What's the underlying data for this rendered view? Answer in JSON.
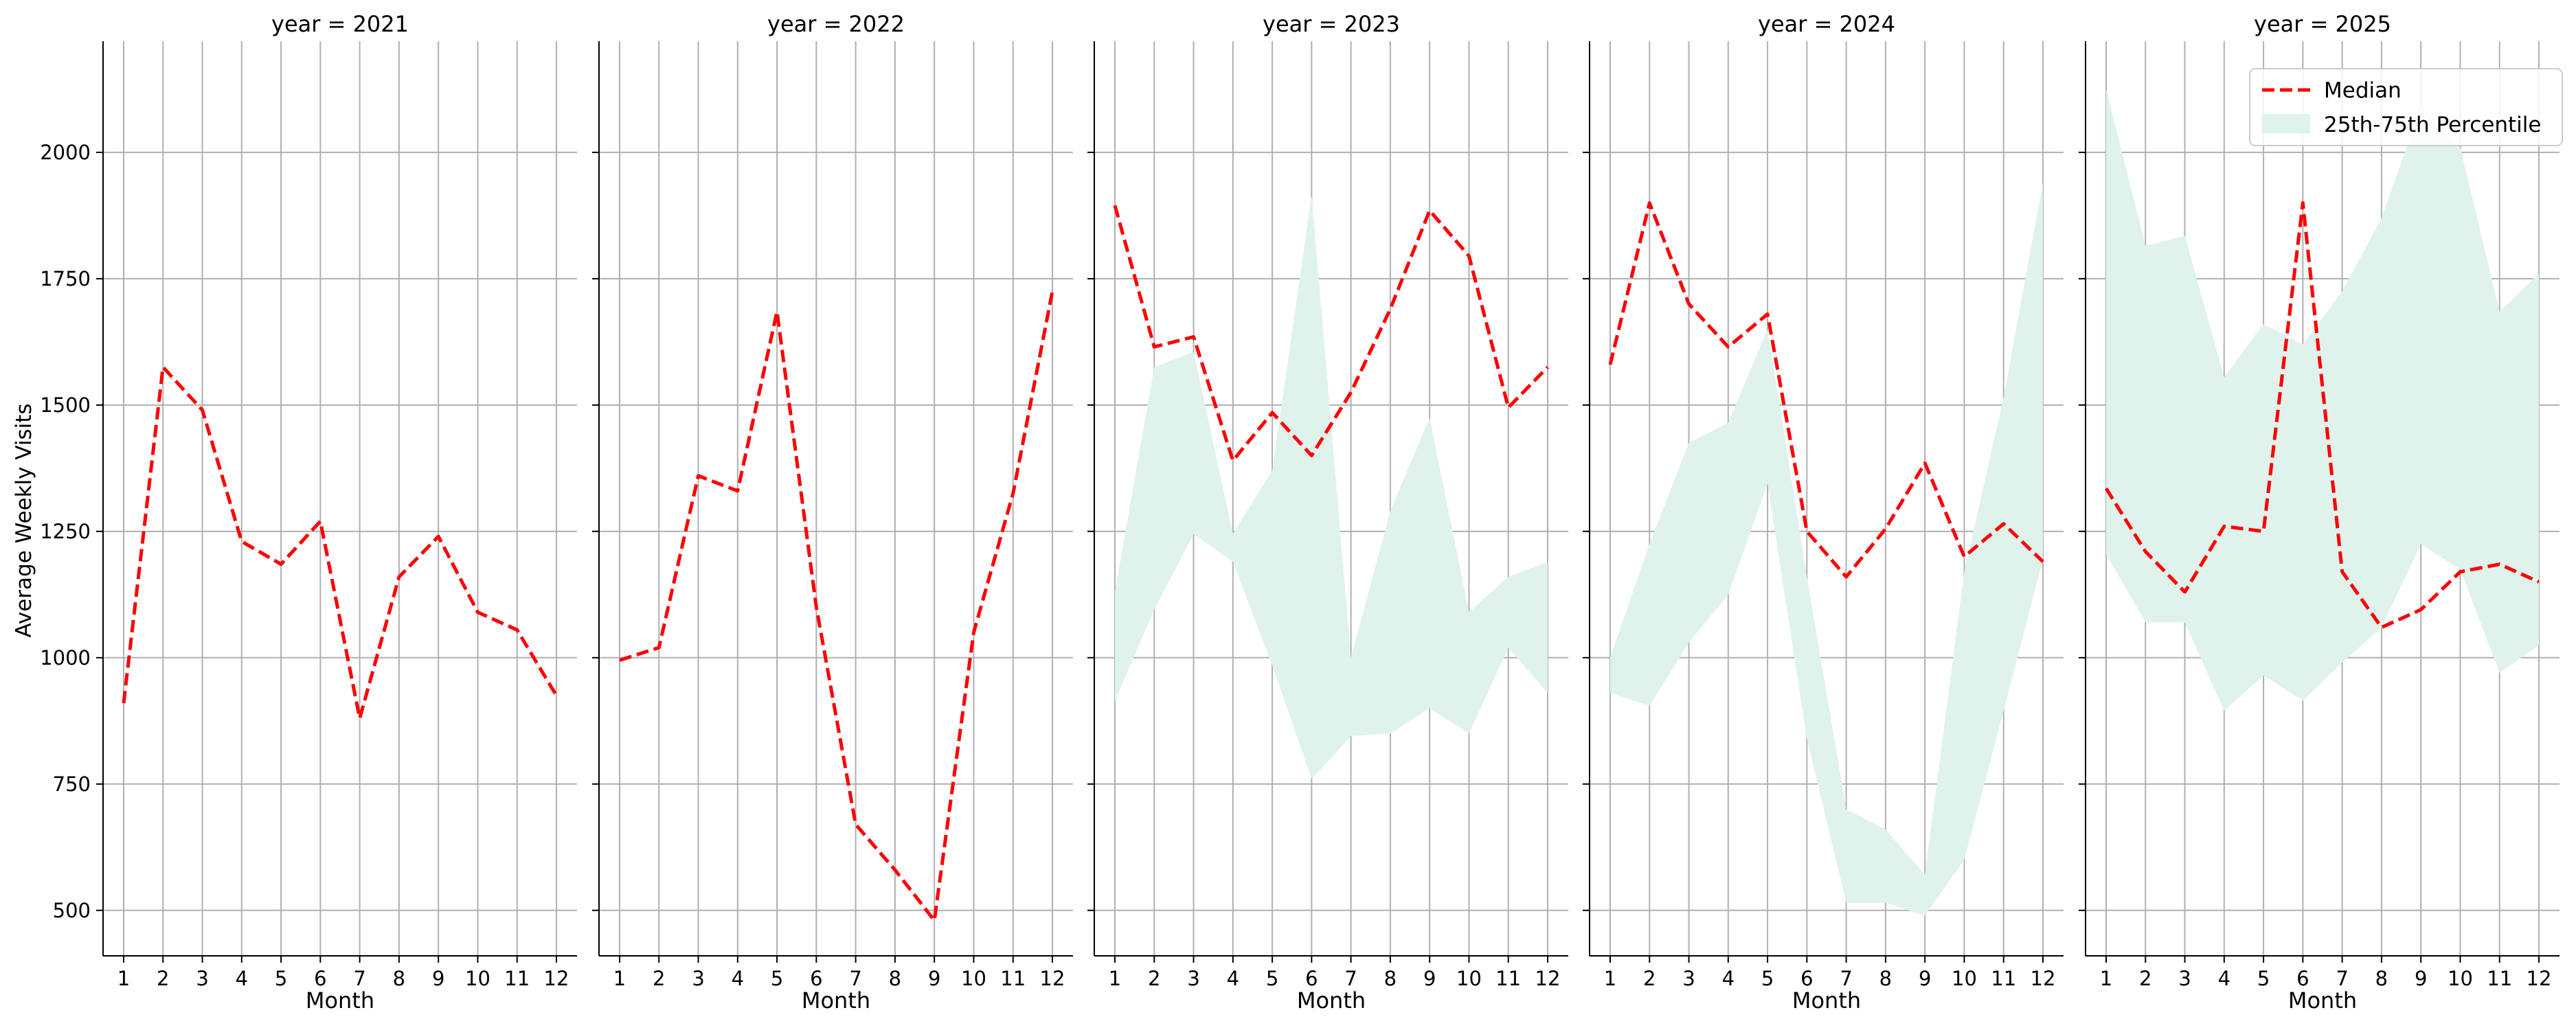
{
  "chart_data": {
    "type": "line",
    "ylabel": "Average Weekly Visits",
    "ylim": [
      410,
      2220
    ],
    "yticks": [
      500,
      750,
      1000,
      1250,
      1500,
      1750,
      2000
    ],
    "grid": true,
    "legend": {
      "placement": "top-right",
      "entries": [
        "Median",
        "25th-75th Percentile"
      ]
    },
    "colors": {
      "median": "#ff0000",
      "band": "#dff2ec",
      "grid": "#b0b0b0"
    },
    "panels": [
      {
        "title": "year = 2021",
        "xlabel": "Month",
        "x": [
          1,
          2,
          3,
          4,
          5,
          6,
          7,
          8,
          9,
          10,
          11,
          12
        ],
        "median": [
          910,
          1575,
          1490,
          1230,
          1185,
          1270,
          880,
          1160,
          1240,
          1090,
          1055,
          925
        ],
        "p25": null,
        "p75": null
      },
      {
        "title": "year = 2022",
        "xlabel": "Month",
        "x": [
          1,
          2,
          3,
          4,
          5,
          6,
          7,
          8,
          9,
          10,
          11,
          12
        ],
        "median": [
          995,
          1020,
          1360,
          1330,
          1685,
          1100,
          670,
          580,
          480,
          1050,
          1325,
          1725
        ],
        "p25": null,
        "p75": null
      },
      {
        "title": "year = 2023",
        "xlabel": "Month",
        "x": [
          1,
          2,
          3,
          4,
          5,
          6,
          7,
          8,
          9,
          10,
          11,
          12
        ],
        "median": [
          1895,
          1615,
          1635,
          1390,
          1485,
          1400,
          1525,
          1690,
          1885,
          1795,
          1495,
          1575
        ],
        "p25": [
          915,
          1095,
          1245,
          1190,
          985,
          760,
          845,
          850,
          900,
          850,
          1020,
          930
        ],
        "p75": [
          1130,
          1575,
          1605,
          1245,
          1370,
          1915,
          1000,
          1290,
          1475,
          1090,
          1160,
          1190
        ]
      },
      {
        "title": "year = 2024",
        "xlabel": "Month",
        "x": [
          1,
          2,
          3,
          4,
          5,
          6,
          7,
          8,
          9,
          10,
          11,
          12
        ],
        "median": [
          1580,
          1900,
          1700,
          1615,
          1680,
          1250,
          1160,
          1255,
          1385,
          1200,
          1265,
          1190
        ],
        "p25": [
          930,
          905,
          1030,
          1125,
          1345,
          840,
          515,
          515,
          490,
          600,
          895,
          1195
        ],
        "p75": [
          1000,
          1225,
          1425,
          1465,
          1650,
          1160,
          700,
          660,
          570,
          1170,
          1515,
          1940
        ]
      },
      {
        "title": "year = 2025",
        "xlabel": "Month",
        "x": [
          1,
          2,
          3,
          4,
          5,
          6,
          7,
          8,
          9,
          10,
          11,
          12
        ],
        "median": [
          1335,
          1210,
          1130,
          1260,
          1250,
          1900,
          1170,
          1060,
          1095,
          1170,
          1185,
          1150
        ],
        "p25": [
          1205,
          1070,
          1070,
          895,
          965,
          915,
          990,
          1060,
          1225,
          1175,
          970,
          1025
        ],
        "p75": [
          2125,
          1815,
          1835,
          1555,
          1660,
          1620,
          1725,
          1870,
          2090,
          2010,
          1685,
          1760
        ]
      }
    ]
  }
}
